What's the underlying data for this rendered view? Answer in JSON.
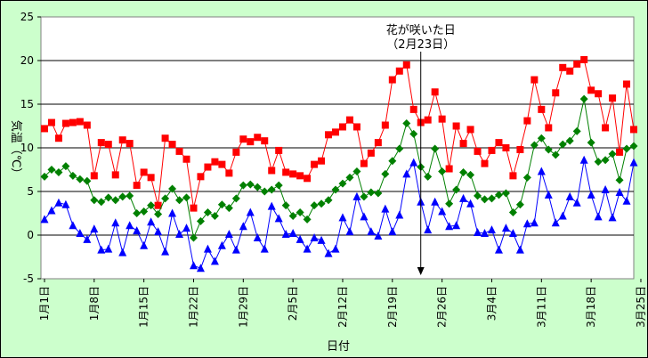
{
  "chart_data": {
    "type": "line",
    "xlabel": "日付",
    "ylabel": "気温（℃）",
    "ylim": [
      -5,
      25
    ],
    "yticks": [
      -5,
      0,
      5,
      10,
      15,
      20,
      25
    ],
    "grid": true,
    "xtick_labels": [
      "1月1日",
      "1月8日",
      "1月15日",
      "1月22日",
      "1月29日",
      "2月5日",
      "2月12日",
      "2月19日",
      "2月26日",
      "3月4日",
      "3月11日",
      "3月18日",
      "3月25日"
    ],
    "annotation": {
      "line1": "花が咲いた日",
      "line2": "（2月23日）",
      "day_index": 53
    },
    "colors": {
      "max": "#ff0000",
      "mean": "#008000",
      "min": "#0000ff",
      "background": "#ccffcc",
      "plot": "#ffffff"
    },
    "series": [
      {
        "marker": "square",
        "values": [
          12.2,
          12.9,
          11.1,
          12.8,
          12.9,
          13.0,
          12.6,
          6.8,
          10.6,
          10.4,
          6.9,
          10.9,
          10.5,
          5.7,
          7.2,
          6.6,
          3.4,
          11.1,
          10.4,
          9.6,
          8.7,
          3.1,
          6.7,
          7.8,
          8.4,
          8.1,
          7.1,
          9.5,
          11.0,
          10.7,
          11.2,
          10.8,
          7.4,
          9.7,
          7.2,
          7.0,
          6.8,
          6.5,
          8.1,
          8.5,
          11.5,
          11.8,
          12.4,
          13.2,
          12.4,
          8.2,
          9.4,
          10.6,
          12.6,
          17.8,
          18.8,
          19.5,
          14.4,
          12.9,
          13.2,
          16.4,
          13.3,
          7.6,
          12.5,
          10.5,
          12.1,
          9.6,
          8.2,
          9.7,
          10.6,
          10.0,
          6.8,
          9.8,
          13.1,
          17.8,
          14.4,
          12.3,
          16.3,
          19.2,
          18.8,
          19.6,
          20.1,
          16.6,
          16.2,
          12.3,
          15.7,
          9.5,
          17.3,
          12.1
        ]
      },
      {
        "marker": "diamond",
        "values": [
          6.7,
          7.5,
          7.2,
          7.9,
          6.8,
          6.4,
          6.2,
          4.0,
          3.8,
          4.3,
          4.0,
          4.4,
          4.5,
          2.5,
          2.7,
          3.4,
          2.4,
          4.2,
          5.3,
          4.0,
          4.3,
          -0.3,
          1.6,
          2.6,
          2.2,
          3.5,
          3.1,
          4.2,
          5.7,
          5.8,
          5.5,
          5.0,
          5.2,
          5.7,
          3.4,
          2.2,
          2.6,
          1.8,
          3.4,
          3.6,
          4.0,
          5.2,
          5.9,
          6.6,
          7.3,
          4.4,
          4.9,
          4.8,
          7.0,
          8.5,
          9.9,
          12.8,
          11.6,
          7.8,
          6.7,
          9.9,
          7.3,
          3.6,
          5.2,
          7.2,
          6.9,
          4.5,
          4.1,
          4.2,
          4.6,
          4.8,
          2.6,
          3.5,
          6.6,
          10.3,
          11.1,
          9.8,
          9.2,
          10.4,
          10.8,
          11.9,
          15.6,
          10.6,
          8.4,
          8.6,
          9.3,
          6.3,
          9.9,
          10.2
        ]
      },
      {
        "marker": "triangle",
        "values": [
          1.8,
          2.8,
          3.7,
          3.5,
          1.1,
          0.2,
          -0.5,
          0.7,
          -1.7,
          -1.6,
          1.4,
          -2.0,
          1.1,
          0.5,
          -1.2,
          1.5,
          0.4,
          -1.9,
          2.5,
          0.1,
          0.8,
          -3.5,
          -3.8,
          -1.6,
          -3.0,
          -1.2,
          0.1,
          -1.7,
          1.0,
          2.6,
          -0.3,
          -1.6,
          3.3,
          1.9,
          0.1,
          0.2,
          -0.5,
          -1.6,
          -0.3,
          -0.6,
          -2.1,
          -1.6,
          2.0,
          0.4,
          4.4,
          2.1,
          0.4,
          -0.1,
          3.0,
          0.4,
          2.3,
          7.0,
          8.3,
          3.8,
          0.6,
          3.8,
          2.7,
          1.0,
          1.1,
          4.2,
          3.6,
          0.3,
          0.2,
          0.6,
          -1.7,
          0.8,
          0.2,
          -1.7,
          1.3,
          1.4,
          7.3,
          4.6,
          1.4,
          2.2,
          4.4,
          3.7,
          8.6,
          4.6,
          2.1,
          5.2,
          2.0,
          4.9,
          3.9,
          8.3
        ]
      }
    ]
  }
}
